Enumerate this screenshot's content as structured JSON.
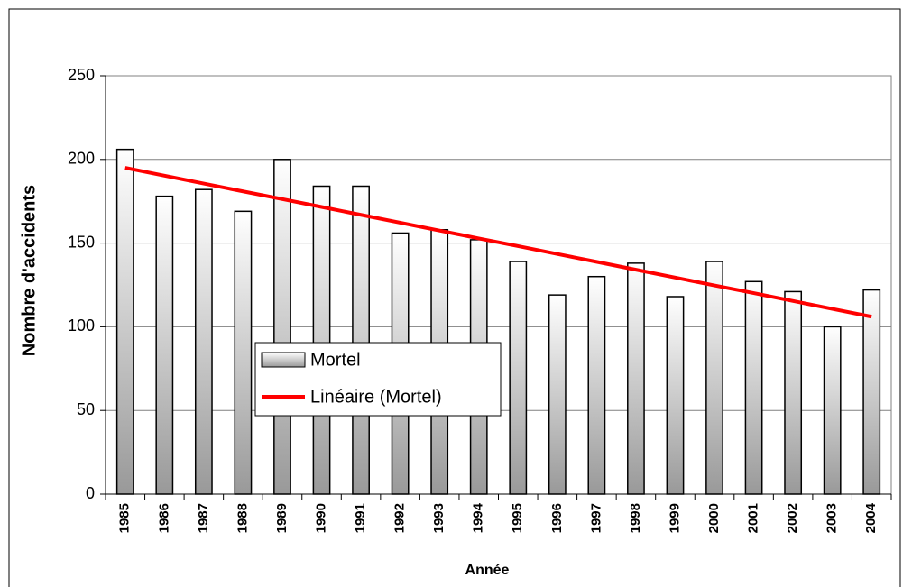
{
  "chart_data": {
    "type": "bar",
    "categories": [
      "1985",
      "1986",
      "1987",
      "1988",
      "1989",
      "1990",
      "1991",
      "1992",
      "1993",
      "1994",
      "1995",
      "1996",
      "1997",
      "1998",
      "1999",
      "2000",
      "2001",
      "2002",
      "2003",
      "2004"
    ],
    "series": [
      {
        "name": "Mortel",
        "type": "bar",
        "color": "#808080",
        "values": [
          206,
          178,
          182,
          169,
          200,
          184,
          184,
          156,
          158,
          152,
          139,
          119,
          130,
          138,
          118,
          139,
          127,
          121,
          100,
          122
        ]
      },
      {
        "name": "Linéaire (Mortel)",
        "type": "line",
        "color": "#ff0000",
        "values": [
          195,
          190.3,
          185.6,
          180.9,
          176.3,
          171.6,
          166.9,
          162.2,
          157.5,
          152.8,
          148.2,
          143.5,
          138.8,
          134.1,
          129.4,
          124.7,
          120.1,
          115.4,
          110.7,
          106
        ]
      }
    ],
    "x_label": "Année",
    "y_label": "Nombre d'accidents",
    "ylim": [
      0,
      250
    ],
    "yticks": [
      0,
      50,
      100,
      150,
      200,
      250
    ],
    "grid": true
  }
}
